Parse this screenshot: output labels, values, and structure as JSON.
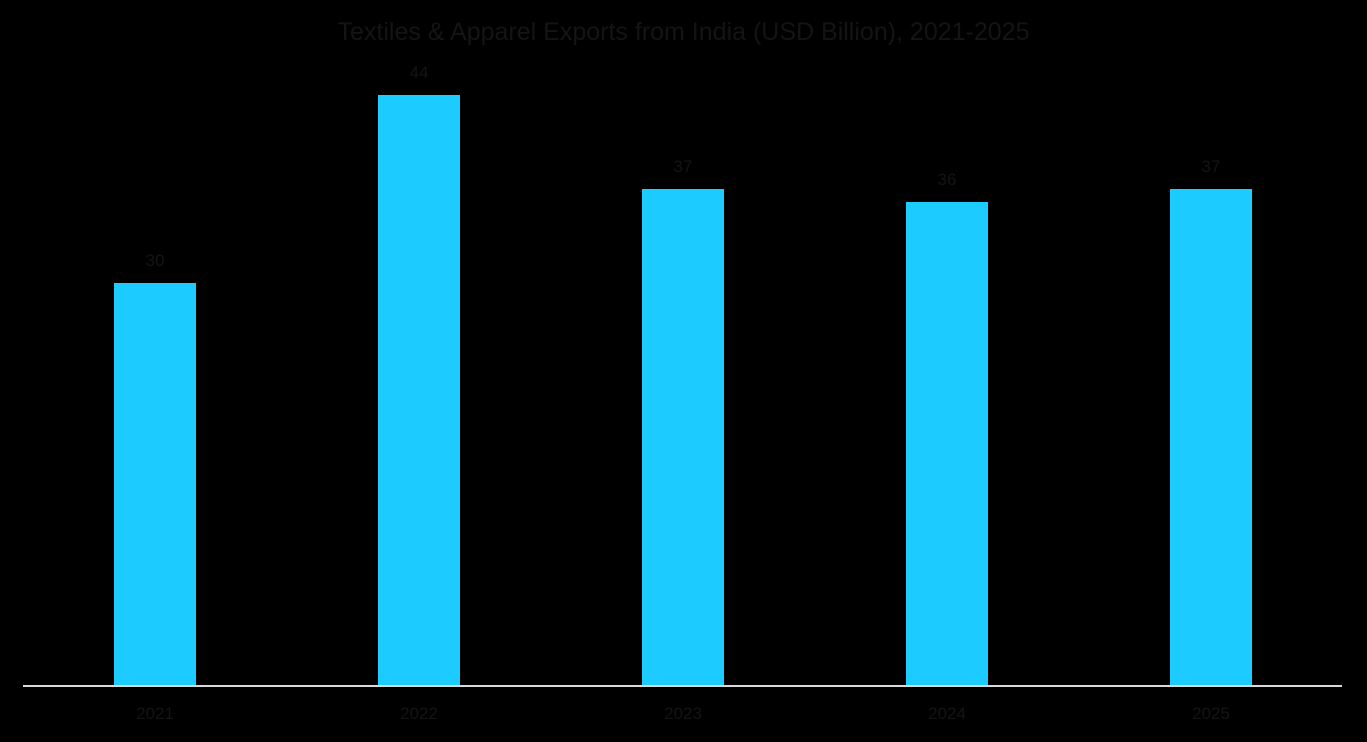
{
  "chart_data": {
    "type": "bar",
    "title": "Textiles & Apparel Exports from India (USD Billion), 2021-2025",
    "xlabel": "",
    "ylabel": "",
    "categories": [
      "2021",
      "2022",
      "2023",
      "2024",
      "2025"
    ],
    "values": [
      30,
      44,
      37,
      36,
      37
    ],
    "data_labels": [
      "30",
      "44",
      "37",
      "36",
      "37"
    ],
    "ylim": [
      0,
      46.6
    ],
    "grid": false,
    "legend": null,
    "bar_color": "#1ccbff",
    "axis_color": "#d9d9d9",
    "background": "#000000"
  }
}
